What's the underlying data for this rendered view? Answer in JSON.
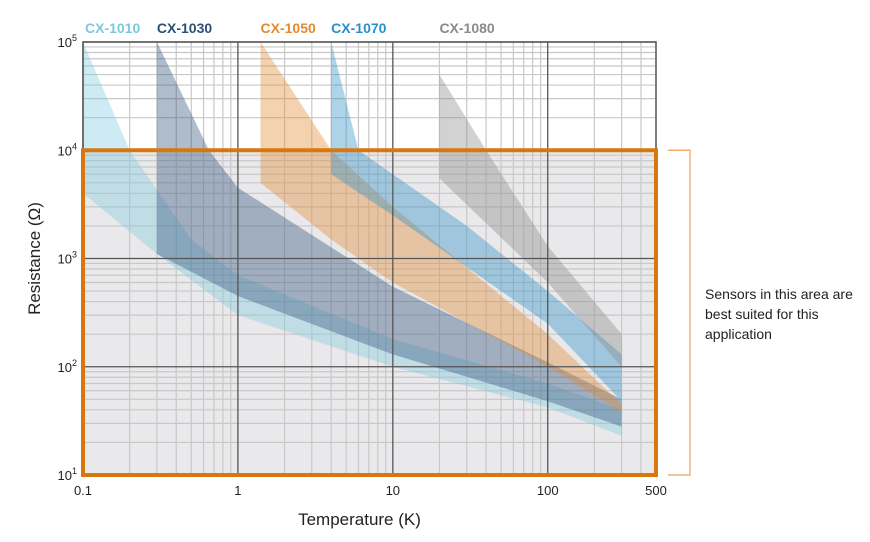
{
  "chart_data": {
    "type": "area",
    "title": "",
    "xlabel": "Temperature (K)",
    "ylabel": "Resistance (Ω)",
    "xscale": "log",
    "yscale": "log",
    "xlim": [
      0.1,
      500
    ],
    "ylim": [
      10,
      100000
    ],
    "x_ticks": [
      {
        "v": 0.1,
        "label": "0.1"
      },
      {
        "v": 1,
        "label": "1"
      },
      {
        "v": 10,
        "label": "10"
      },
      {
        "v": 100,
        "label": "100"
      },
      {
        "v": 500,
        "label": "500"
      }
    ],
    "y_ticks": [
      {
        "v": 10,
        "base": "10",
        "exp": "1"
      },
      {
        "v": 100,
        "base": "10",
        "exp": "2"
      },
      {
        "v": 1000,
        "base": "10",
        "exp": "3"
      },
      {
        "v": 10000,
        "base": "10",
        "exp": "4"
      },
      {
        "v": 100000,
        "base": "10",
        "exp": "5"
      }
    ],
    "grid": true,
    "legend_position": "top",
    "series": [
      {
        "name": "CX-1010",
        "color": "#7fc8dc",
        "upper": [
          [
            0.1,
            100000
          ],
          [
            0.2,
            10000
          ],
          [
            0.5,
            1500
          ],
          [
            1,
            700
          ],
          [
            10,
            180
          ],
          [
            100,
            70
          ],
          [
            300,
            40
          ]
        ],
        "lower": [
          [
            0.1,
            4000
          ],
          [
            0.3,
            1100
          ],
          [
            1,
            300
          ],
          [
            10,
            100
          ],
          [
            100,
            42
          ],
          [
            300,
            23
          ]
        ]
      },
      {
        "name": "CX-1030",
        "color": "#2c4f78",
        "upper": [
          [
            0.3,
            100000
          ],
          [
            0.65,
            10000
          ],
          [
            1,
            4500
          ],
          [
            10,
            550
          ],
          [
            100,
            110
          ],
          [
            300,
            50
          ]
        ],
        "lower": [
          [
            0.3,
            1100
          ],
          [
            1,
            450
          ],
          [
            10,
            130
          ],
          [
            100,
            48
          ],
          [
            300,
            28
          ]
        ]
      },
      {
        "name": "CX-1050",
        "color": "#e38a2f",
        "upper": [
          [
            1.4,
            100000
          ],
          [
            4,
            10000
          ],
          [
            10,
            3000
          ],
          [
            100,
            200
          ],
          [
            300,
            45
          ]
        ],
        "lower": [
          [
            1.4,
            5000
          ],
          [
            4,
            1500
          ],
          [
            10,
            600
          ],
          [
            100,
            100
          ],
          [
            300,
            38
          ]
        ]
      },
      {
        "name": "CX-1070",
        "color": "#2a8fc9",
        "upper": [
          [
            4,
            100000
          ],
          [
            6,
            10000
          ],
          [
            30,
            2000
          ],
          [
            100,
            500
          ],
          [
            300,
            130
          ]
        ],
        "lower": [
          [
            4,
            6000
          ],
          [
            10,
            2500
          ],
          [
            100,
            250
          ],
          [
            300,
            48
          ]
        ]
      },
      {
        "name": "CX-1080",
        "color": "#8a8a8a",
        "upper": [
          [
            20,
            50000
          ],
          [
            40,
            10000
          ],
          [
            100,
            1300
          ],
          [
            300,
            200
          ]
        ],
        "lower": [
          [
            20,
            5500
          ],
          [
            100,
            600
          ],
          [
            300,
            100
          ]
        ]
      }
    ],
    "highlight_region": {
      "x": [
        0.1,
        500
      ],
      "y": [
        10,
        10000
      ],
      "color": "#d9770f"
    },
    "annotation": "Sensors in this area are best suited for this application"
  }
}
